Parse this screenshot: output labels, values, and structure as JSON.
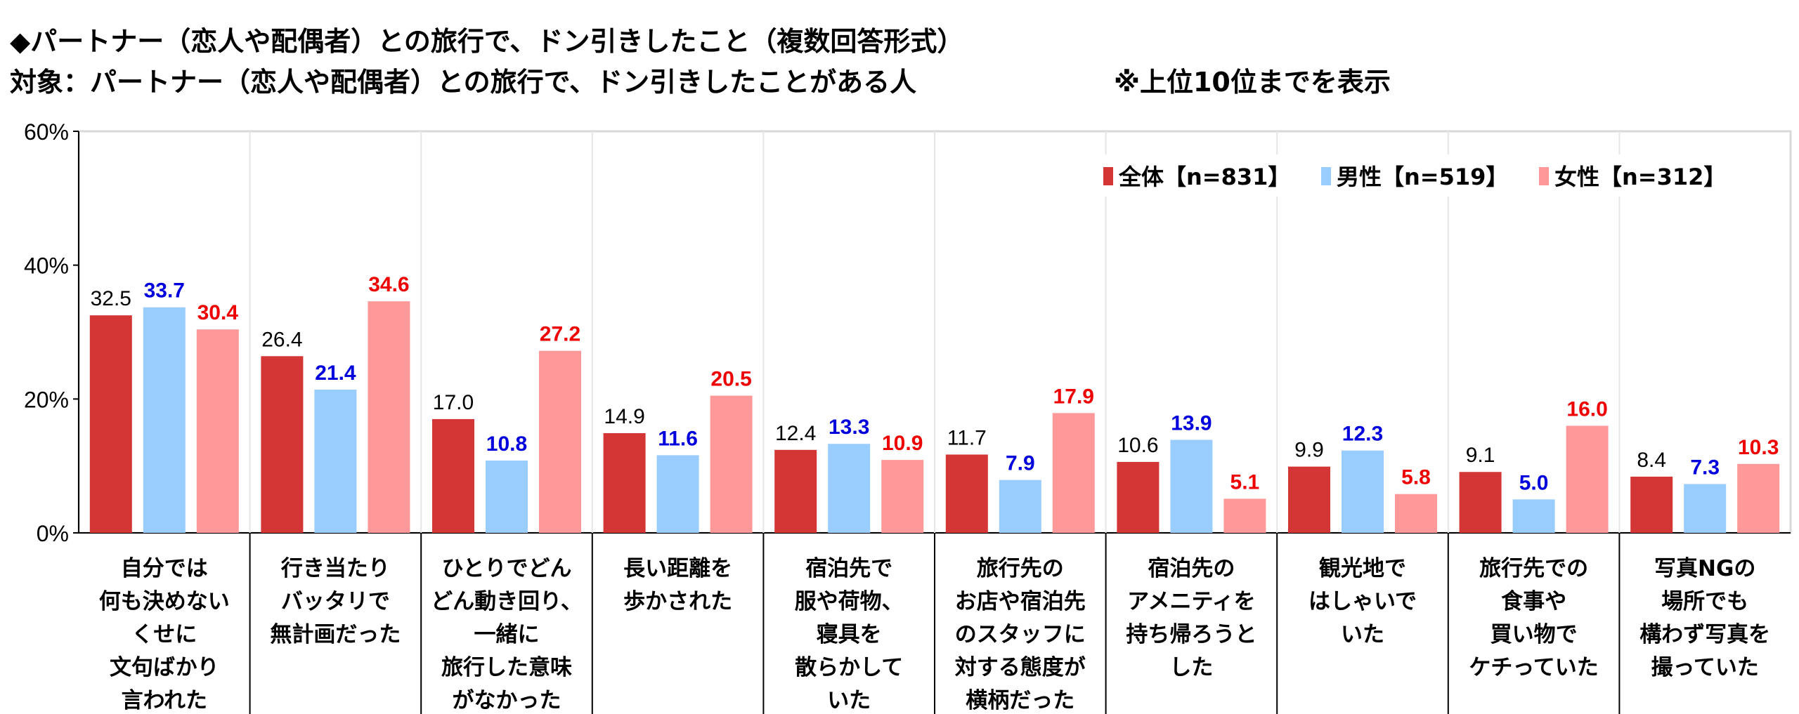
{
  "title": "◆パートナー（恋人や配偶者）との旅行で、ドン引きしたこと（複数回答形式）",
  "subtitle": "対象：パートナー（恋人や配偶者）との旅行で、ドン引きしたことがある人",
  "note": "※上位10位までを表示",
  "chart_data": {
    "type": "bar",
    "title": "◆パートナー（恋人や配偶者）との旅行で、ドン引きしたこと（複数回答形式）",
    "ylim": [
      0,
      60
    ],
    "yticks": [
      "0%",
      "20%",
      "40%",
      "60%"
    ],
    "ytick_values": [
      0,
      20,
      40,
      60
    ],
    "grid": false,
    "legend_position": "top-right",
    "categories": [
      [
        "自分では",
        "何も決めない",
        "くせに",
        "文句ばかり",
        "言われた"
      ],
      [
        "行き当たり",
        "バッタリで",
        "無計画だった"
      ],
      [
        "ひとりでどん",
        "どん動き回り、",
        "一緒に",
        "旅行した意味",
        "がなかった"
      ],
      [
        "長い距離を",
        "歩かされた"
      ],
      [
        "宿泊先で",
        "服や荷物、",
        "寝具を",
        "散らかして",
        "いた"
      ],
      [
        "旅行先の",
        "お店や宿泊先",
        "のスタッフに",
        "対する態度が",
        "横柄だった"
      ],
      [
        "宿泊先の",
        "アメニティを",
        "持ち帰ろうと",
        "した"
      ],
      [
        "観光地で",
        "はしゃいで",
        "いた"
      ],
      [
        "旅行先での",
        "食事や",
        "買い物で",
        "ケチっていた"
      ],
      [
        "写真NGの",
        "場所でも",
        "構わず写真を",
        "撮っていた"
      ]
    ],
    "series": [
      {
        "name": "全体【n=831】",
        "color": "#d43535",
        "label_color": "#000000",
        "values": [
          32.5,
          26.4,
          17.0,
          14.9,
          12.4,
          11.7,
          10.6,
          9.9,
          9.1,
          8.4
        ]
      },
      {
        "name": "男性【n=519】",
        "color": "#99ccff",
        "label_color": "#0000dd",
        "values": [
          33.7,
          21.4,
          10.8,
          11.6,
          13.3,
          7.9,
          13.9,
          12.3,
          5.0,
          7.3
        ]
      },
      {
        "name": "女性【n=312】",
        "color": "#ff9999",
        "label_color": "#ee0000",
        "values": [
          30.4,
          34.6,
          27.2,
          20.5,
          10.9,
          17.9,
          5.1,
          5.8,
          16.0,
          10.3
        ]
      }
    ]
  }
}
